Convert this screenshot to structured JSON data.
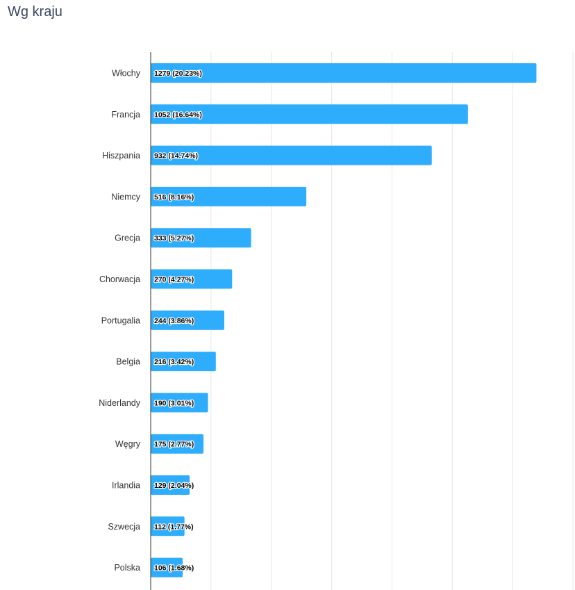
{
  "title": "Wg kraju",
  "colors": {
    "bar": "#2eadfc",
    "grid": "#e6e6e6",
    "axis": "#333333"
  },
  "chart_data": {
    "type": "bar",
    "orientation": "horizontal",
    "title": "Wg kraju",
    "xlabel": "",
    "ylabel": "",
    "xlim": [
      0,
      1400
    ],
    "grid": true,
    "categories": [
      "Włochy",
      "Francja",
      "Hiszpania",
      "Niemcy",
      "Grecja",
      "Chorwacja",
      "Portugalia",
      "Belgia",
      "Niderlandy",
      "Węgry",
      "Irlandia",
      "Szwecja",
      "Polska"
    ],
    "values": [
      1279,
      1052,
      932,
      516,
      333,
      270,
      244,
      216,
      190,
      175,
      129,
      112,
      106
    ],
    "data_labels": [
      "1279 (20.23%)",
      "1052 (16.64%)",
      "932 (14.74%)",
      "516 (8.16%)",
      "333 (5.27%)",
      "270 (4.27%)",
      "244 (3.86%)",
      "216 (3.42%)",
      "190 (3.01%)",
      "175 (2.77%)",
      "129 (2.04%)",
      "112 (1.77%)",
      "106 (1.68%)"
    ]
  }
}
